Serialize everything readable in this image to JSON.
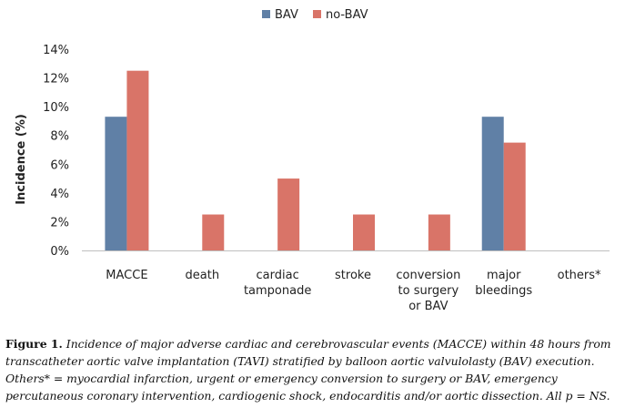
{
  "chart_data": {
    "type": "bar",
    "categories": [
      [
        "MACCE"
      ],
      [
        "death"
      ],
      [
        "cardiac",
        "tamponade"
      ],
      [
        "stroke"
      ],
      [
        "conversion",
        "to surgery",
        "or BAV"
      ],
      [
        "major",
        "bleedings"
      ],
      [
        "others*"
      ]
    ],
    "series": [
      {
        "name": "BAV",
        "color": "#6080a6",
        "values": [
          9.3,
          0,
          0,
          0,
          0,
          9.3,
          0
        ]
      },
      {
        "name": "no-BAV",
        "color": "#d97468",
        "values": [
          12.5,
          2.5,
          5.0,
          2.5,
          2.5,
          7.5,
          0
        ]
      }
    ],
    "ylabel": "Incidence (%)",
    "ylim": [
      0,
      14
    ],
    "yticks": [
      "0%",
      "2%",
      "4%",
      "6%",
      "8%",
      "10%",
      "12%",
      "14%"
    ],
    "grid": false,
    "legend": "top"
  },
  "caption": {
    "lead": "Figure 1.",
    "text": "Incidence of major adverse cardiac and cerebrovascular events (MACCE) within 48 hours from transcatheter aortic valve implantation (TAVI) stratified by balloon aortic valvulolasty (BAV) execution. Others* = myocardial infarction, urgent or emergency conversion to surgery or BAV, emergency percutaneous coronary intervention, cardiogenic shock, endocarditis and/or aortic dissection. All p = NS."
  }
}
